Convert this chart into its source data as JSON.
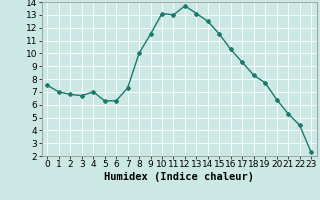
{
  "x": [
    0,
    1,
    2,
    3,
    4,
    5,
    6,
    7,
    8,
    9,
    10,
    11,
    12,
    13,
    14,
    15,
    16,
    17,
    18,
    19,
    20,
    21,
    22,
    23
  ],
  "y": [
    7.5,
    7.0,
    6.8,
    6.7,
    7.0,
    6.3,
    6.3,
    7.3,
    10.0,
    11.5,
    13.1,
    13.0,
    13.7,
    13.1,
    12.5,
    11.5,
    10.3,
    9.3,
    8.3,
    7.7,
    6.4,
    5.3,
    4.4,
    2.3
  ],
  "line_color": "#1a7a6e",
  "marker": "D",
  "marker_size": 2.0,
  "line_width": 1.0,
  "bg_color": "#cce8e4",
  "grid_color": "#ffffff",
  "xlabel": "Humidex (Indice chaleur)",
  "xlabel_fontsize": 7.5,
  "tick_fontsize": 6.5,
  "ylim": [
    2,
    14
  ],
  "xlim": [
    -0.5,
    23.5
  ],
  "yticks": [
    2,
    3,
    4,
    5,
    6,
    7,
    8,
    9,
    10,
    11,
    12,
    13,
    14
  ],
  "xticks": [
    0,
    1,
    2,
    3,
    4,
    5,
    6,
    7,
    8,
    9,
    10,
    11,
    12,
    13,
    14,
    15,
    16,
    17,
    18,
    19,
    20,
    21,
    22,
    23
  ]
}
